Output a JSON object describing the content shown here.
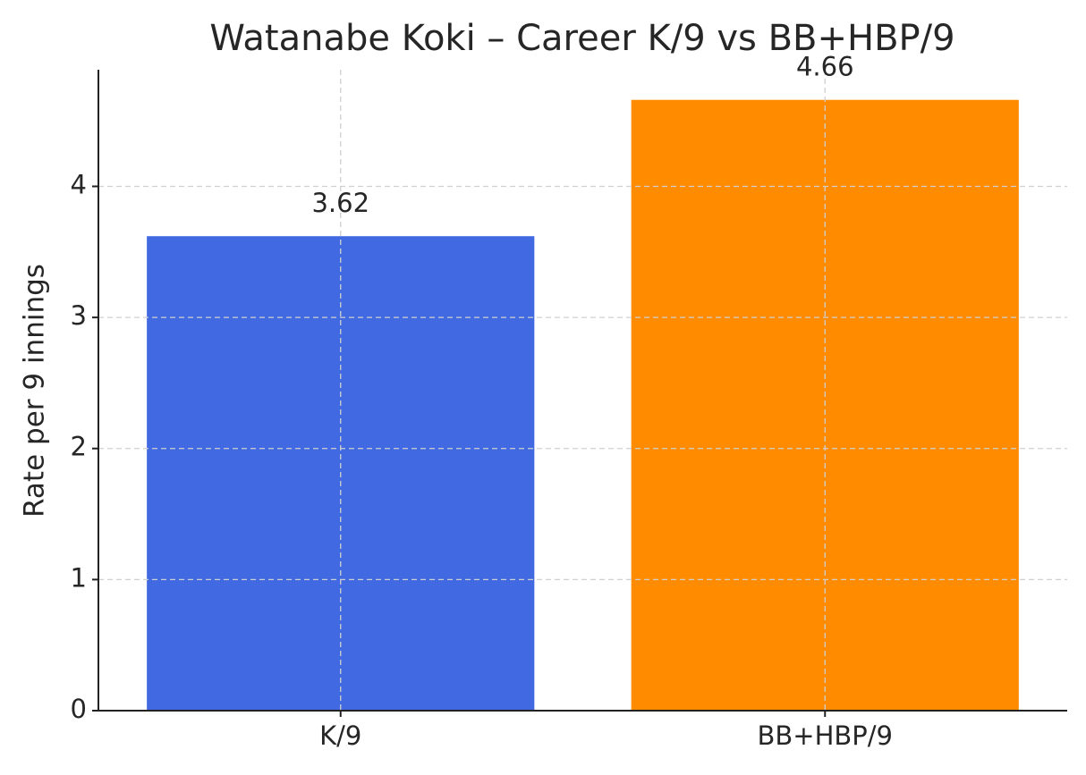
{
  "chart_data": {
    "type": "bar",
    "title": "Watanabe Koki – Career K/9 vs BB+HBP/9",
    "y_label": "Rate per 9 innings",
    "categories": [
      "K/9",
      "BB+HBP/9"
    ],
    "values": [
      3.62,
      4.66
    ],
    "colors": [
      "#4169e1",
      "#ff8c00"
    ],
    "ylim": [
      0,
      4.89
    ],
    "yticks": [
      0,
      1,
      2,
      3,
      4
    ],
    "grid": true
  }
}
